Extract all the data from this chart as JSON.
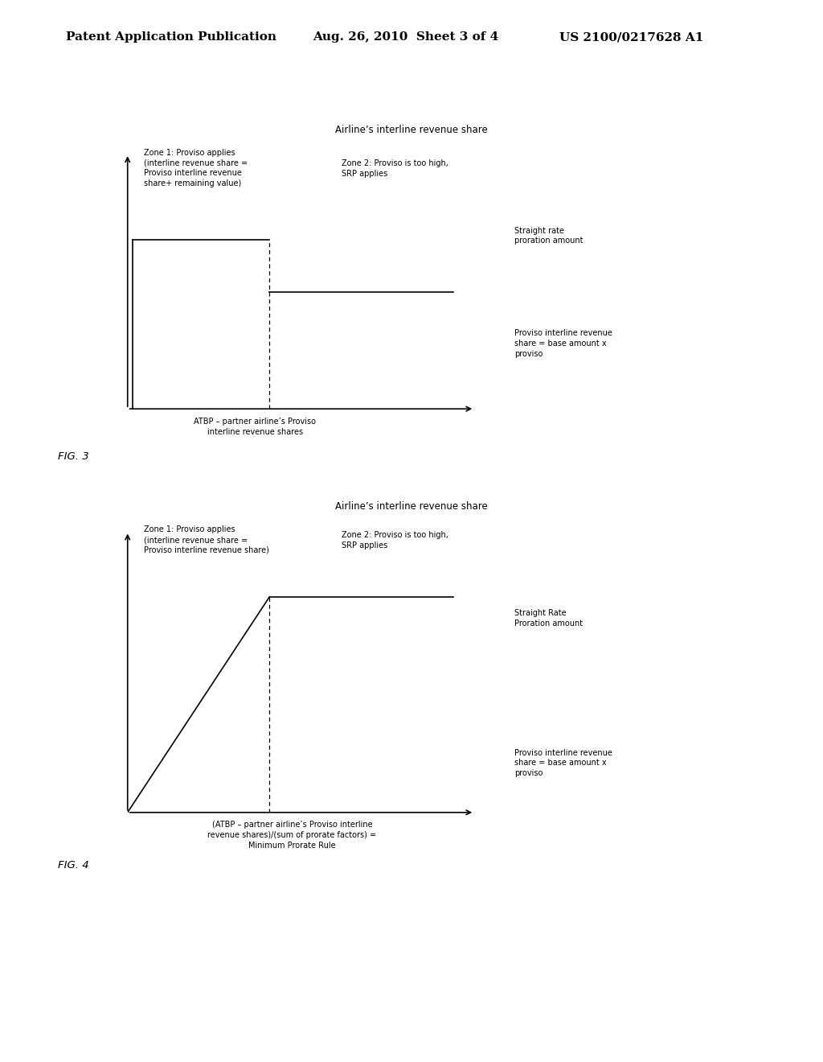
{
  "background_color": "#ffffff",
  "header_left": "Patent Application Publication",
  "header_center": "Aug. 26, 2010  Sheet 3 of 4",
  "header_right": "US 2100/0217628 A1",
  "fig3_title": "Airline’s interline revenue share",
  "fig3_zone1_label": "Zone 1: Proviso applies\n(interline revenue share =\nProviso interline revenue\nshare+ remaining value)",
  "fig3_zone2_label": "Zone 2: Proviso is too high,\nSRP applies",
  "fig3_srp_label": "Straight rate\nproration amount",
  "fig3_proviso_label": "Proviso interline revenue\nshare = base amount x\nproviso",
  "fig3_xlabel": "ATBP – partner airline’s Proviso\ninterline revenue shares",
  "fig3_label": "FIG. 3",
  "fig4_title": "Airline’s interline revenue share",
  "fig4_zone1_label": "Zone 1: Proviso applies\n(interline revenue share =\nProviso interline revenue share)",
  "fig4_zone2_label": "Zone 2: Proviso is too high,\nSRP applies",
  "fig4_srp_label": "Straight Rate\nProration amount",
  "fig4_proviso_label": "Proviso interline revenue\nshare = base amount x\nproviso",
  "fig4_xlabel": "(ATBP – partner airline’s Proviso interline\nrevenue shares)/(sum of prorate factors) =\nMinimum Prorate Rule",
  "fig4_label": "FIG. 4"
}
